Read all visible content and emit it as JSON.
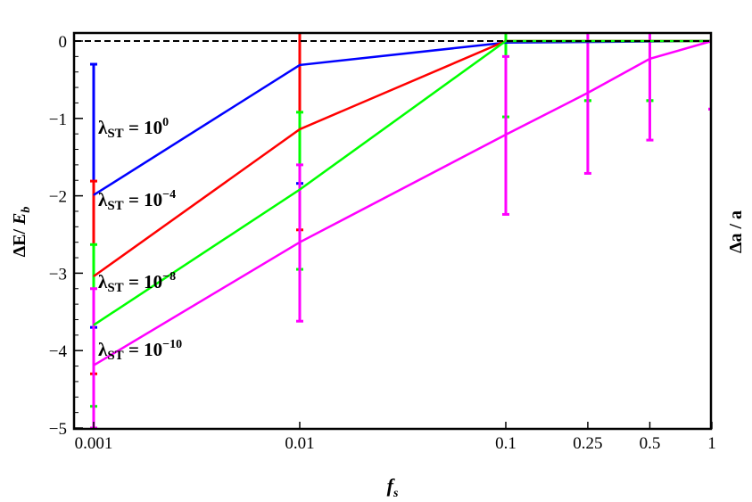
{
  "chart_data": {
    "type": "line",
    "xlabel": "f_s",
    "ylabel": "ΔE/ E_b",
    "ylabel_right": "Δa / a",
    "x_scale": "log",
    "xlim": [
      0.001,
      1
    ],
    "ylim": [
      -5,
      0.1
    ],
    "x_ticks": [
      0.001,
      0.01,
      0.1,
      0.25,
      0.5,
      1
    ],
    "x_tick_labels": [
      "0.001",
      "0.01",
      "0.1",
      "0.25",
      "0.5",
      "1"
    ],
    "y_ticks": [
      0,
      -1,
      -2,
      -3,
      -4,
      -5
    ],
    "y_tick_labels": [
      "0",
      "−1",
      "−2",
      "−3",
      "−4",
      "−5"
    ],
    "reference_line": {
      "y": 0,
      "style": "dashed",
      "color": "#000000"
    },
    "series": [
      {
        "name": "λST = 10^0",
        "label_main": "λ",
        "label_sub": "ST",
        "label_eq": " = 10",
        "label_sup": "0",
        "color": "#0000ff",
        "x": [
          0.001,
          0.01,
          0.1,
          1
        ],
        "y": [
          -1.99,
          -0.31,
          -0.02,
          0
        ],
        "errorbars": [
          {
            "x": 0.001,
            "low": -3.7,
            "high": -0.3
          },
          {
            "x": 0.01,
            "low": -1.84,
            "high": 0.2
          }
        ]
      },
      {
        "name": "λST = 10^-4",
        "label_main": "λ",
        "label_sub": "ST",
        "label_eq": " = 10",
        "label_sup": "−4",
        "color": "#ff0000",
        "x": [
          0.001,
          0.01,
          0.1,
          1
        ],
        "y": [
          -3.04,
          -1.14,
          0,
          0
        ],
        "errorbars": [
          {
            "x": 0.001,
            "low": -4.3,
            "high": -1.81
          },
          {
            "x": 0.01,
            "low": -2.44,
            "high": 0.2
          }
        ]
      },
      {
        "name": "λST = 10^-8",
        "label_main": "λ",
        "label_sub": "ST",
        "label_eq": " = 10",
        "label_sup": "−8",
        "color": "#00ff00",
        "x": [
          0.001,
          0.01,
          0.1,
          1
        ],
        "y": [
          -3.67,
          -1.92,
          0,
          0
        ],
        "errorbars": [
          {
            "x": 0.001,
            "low": -4.72,
            "high": -2.63
          },
          {
            "x": 0.01,
            "low": -2.95,
            "high": -0.92
          },
          {
            "x": 0.1,
            "low": -0.98,
            "high": 0.2
          },
          {
            "x": 0.25,
            "low": -0.77,
            "high": -0.77
          },
          {
            "x": 0.5,
            "low": -0.77,
            "high": -0.77
          }
        ]
      },
      {
        "name": "λST = 10^-10",
        "label_main": "λ",
        "label_sub": "ST",
        "label_eq": " = 10",
        "label_sup": "−10",
        "color": "#ff00ff",
        "x": [
          0.001,
          0.01,
          0.1,
          0.25,
          0.5,
          1
        ],
        "y": [
          -4.19,
          -2.6,
          -1.21,
          -0.67,
          -0.23,
          0
        ],
        "errorbars": [
          {
            "x": 0.001,
            "low": -5,
            "high": -3.2
          },
          {
            "x": 0.01,
            "low": -3.62,
            "high": -1.6
          },
          {
            "x": 0.1,
            "low": -2.24,
            "high": -0.2
          },
          {
            "x": 0.25,
            "low": -1.71,
            "high": 0.2
          },
          {
            "x": 0.5,
            "low": -1.28,
            "high": 0.2
          },
          {
            "x": 1,
            "low": -0.88,
            "high": -0.88
          }
        ]
      }
    ]
  }
}
